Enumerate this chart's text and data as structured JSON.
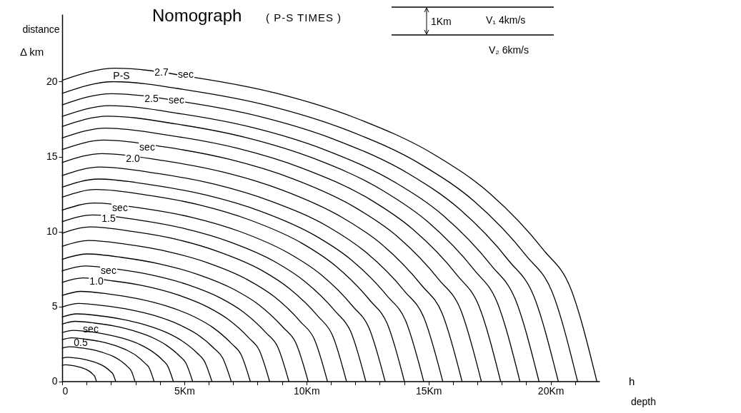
{
  "chart_data": {
    "type": "line",
    "title": "Nomograph",
    "subtitle": "( P-S TIMES )",
    "xlabel": "depth",
    "ylabel": "distance",
    "xlim": [
      0,
      22
    ],
    "ylim": [
      0,
      24.5
    ],
    "xticks": [
      0,
      {
        "value": 1,
        "label": null
      },
      {
        "value": 2,
        "label": null
      },
      {
        "value": 3,
        "label": null
      },
      {
        "value": 4,
        "label": null
      },
      {
        "value": 5,
        "label": "5Km"
      },
      {
        "value": 6,
        "label": null
      },
      {
        "value": 7,
        "label": null
      },
      {
        "value": 8,
        "label": null
      },
      {
        "value": 9,
        "label": null
      },
      {
        "value": 10,
        "label": "10Km"
      },
      {
        "value": 11,
        "label": null
      },
      {
        "value": 12,
        "label": null
      },
      {
        "value": 13,
        "label": null
      },
      {
        "value": 14,
        "label": null
      },
      {
        "value": 15,
        "label": "15Km"
      },
      {
        "value": 16,
        "label": null
      },
      {
        "value": 17,
        "label": null
      },
      {
        "value": 18,
        "label": null
      },
      {
        "value": 19,
        "label": null
      },
      {
        "value": 20,
        "label": "20Km"
      },
      {
        "value": 21,
        "label": null
      }
    ],
    "yticks": [
      0,
      5,
      10,
      15,
      20
    ],
    "series": [
      {
        "color": "#000000",
        "x": [
          0,
          0.14,
          0.35,
          0.56,
          0.77,
          0.98,
          1.12,
          1.26,
          1.33,
          1.4
        ],
        "values": [
          1.07,
          1.1,
          1.07,
          1.01,
          0.92,
          0.79,
          0.66,
          0.46,
          0.33,
          0
        ]
      },
      {
        "color": "#000000",
        "x": [
          0,
          0.22,
          0.55,
          0.88,
          1.2,
          1.53,
          1.75,
          1.97,
          2.08,
          2.19
        ],
        "values": [
          1.54,
          1.6,
          1.55,
          1.47,
          1.34,
          1.15,
          0.96,
          0.67,
          0.48,
          0
        ]
      },
      {
        "color": "#000000",
        "x": [
          0,
          0.3,
          0.75,
          1.19,
          1.64,
          2.09,
          2.38,
          2.68,
          2.83,
          2.98
        ],
        "values": [
          2.21,
          2.3,
          2.23,
          2.12,
          1.93,
          1.66,
          1.38,
          0.97,
          0.69,
          0
        ]
      },
      {
        "color": "#000000",
        "x": [
          0,
          0.38,
          0.94,
          1.5,
          2.07,
          2.63,
          3.01,
          3.38,
          3.57,
          3.76
        ],
        "values": [
          2.78,
          2.9,
          2.81,
          2.67,
          2.44,
          2.09,
          1.74,
          1.22,
          0.87,
          0
        ]
      },
      {
        "color": "#000000",
        "x": [
          0,
          0.46,
          1.14,
          1.82,
          2.5,
          3.19,
          3.64,
          4.1,
          4.32,
          4.55
        ],
        "values": [
          3.25,
          3.4,
          3.3,
          3.13,
          2.86,
          2.45,
          2.04,
          1.43,
          1.02,
          0
        ]
      },
      {
        "color": "#000000",
        "x": [
          0,
          0.53,
          1.34,
          2.14,
          2.94,
          3.74,
          4.27,
          4.81,
          5.07,
          5.34
        ],
        "values": [
          3.82,
          4,
          3.88,
          3.68,
          3.36,
          2.88,
          2.4,
          1.68,
          1.2,
          0
        ]
      },
      {
        "color": "#000000",
        "x": [
          0,
          0.61,
          1.53,
          2.45,
          3.37,
          4.29,
          4.9,
          5.52,
          5.82,
          6.13
        ],
        "values": [
          4.29,
          4.5,
          4.37,
          4.14,
          3.78,
          3.24,
          2.7,
          1.89,
          1.35,
          0
        ]
      },
      {
        "color": "#000000",
        "x": [
          0,
          0.69,
          1.73,
          2.77,
          3.81,
          4.84,
          5.54,
          6.23,
          6.57,
          6.92
        ],
        "values": [
          4.96,
          5.2,
          5.04,
          4.78,
          4.37,
          3.74,
          3.12,
          2.18,
          1.56,
          0
        ]
      },
      {
        "color": "#000000",
        "x": [
          0,
          0.77,
          1.93,
          3.08,
          4.24,
          5.39,
          6.16,
          6.93,
          7.32,
          7.7
        ],
        "values": [
          5.73,
          6,
          5.82,
          5.52,
          5.04,
          4.32,
          3.6,
          2.52,
          1.8,
          0
        ]
      },
      {
        "color": "#000000",
        "x": [
          0,
          0.85,
          2.12,
          3.4,
          4.67,
          5.94,
          6.79,
          7.64,
          8.07,
          8.49
        ],
        "values": [
          6.6,
          6.9,
          6.69,
          6.35,
          5.8,
          4.97,
          4.14,
          2.9,
          2.07,
          0
        ]
      },
      {
        "color": "#000000",
        "x": [
          0,
          0.93,
          2.32,
          3.71,
          5.1,
          6.5,
          7.42,
          8.35,
          8.82,
          9.28
        ],
        "values": [
          7.37,
          7.7,
          7.47,
          7.08,
          6.47,
          5.54,
          4.62,
          3.23,
          2.31,
          0
        ]
      },
      {
        "color": "#000000",
        "x": [
          0,
          1.01,
          2.52,
          4.03,
          5.54,
          7.05,
          8.06,
          9.06,
          9.57,
          10.07
        ],
        "values": [
          8.14,
          8.5,
          8.25,
          7.82,
          7.14,
          6.12,
          5.1,
          3.57,
          2.55,
          0
        ]
      },
      {
        "color": "#000000",
        "x": [
          0,
          1.09,
          2.72,
          4.34,
          5.97,
          7.6,
          8.69,
          9.77,
          10.32,
          10.86
        ],
        "values": [
          9.01,
          9.4,
          9.12,
          8.65,
          7.9,
          6.77,
          5.64,
          3.95,
          2.82,
          0
        ]
      },
      {
        "color": "#000000",
        "x": [
          0,
          1.16,
          2.91,
          4.66,
          6.4,
          8.15,
          9.31,
          10.48,
          11.06,
          11.64
        ],
        "values": [
          9.88,
          10.3,
          9.99,
          9.48,
          8.65,
          7.42,
          6.18,
          4.33,
          3.09,
          0
        ]
      },
      {
        "color": "#000000",
        "x": [
          0,
          1.24,
          3.11,
          4.97,
          6.84,
          8.7,
          9.94,
          11.19,
          11.81,
          12.43
        ],
        "values": [
          10.65,
          11.1,
          10.77,
          10.21,
          9.32,
          7.99,
          6.66,
          4.66,
          3.33,
          0
        ]
      },
      {
        "color": "#000000",
        "x": [
          0,
          1.32,
          3.31,
          5.29,
          7.27,
          9.25,
          10.58,
          11.9,
          12.56,
          13.22
        ],
        "values": [
          11.42,
          11.9,
          11.54,
          10.95,
          10,
          8.57,
          7.14,
          5,
          3.57,
          0
        ]
      },
      {
        "color": "#000000",
        "x": [
          0,
          1.4,
          3.5,
          5.6,
          7.71,
          9.81,
          11.21,
          12.61,
          13.31,
          14.01
        ],
        "values": [
          12.29,
          12.8,
          12.42,
          11.78,
          10.75,
          9.22,
          7.68,
          5.38,
          3.84,
          0
        ]
      },
      {
        "color": "#000000",
        "x": [
          0,
          1.48,
          3.7,
          5.92,
          8.14,
          10.36,
          11.84,
          13.32,
          14.06,
          14.8
        ],
        "values": [
          12.96,
          13.5,
          13.1,
          12.42,
          11.34,
          9.72,
          8.1,
          5.67,
          4.05,
          0
        ]
      },
      {
        "color": "#000000",
        "x": [
          0,
          1.56,
          3.9,
          6.23,
          8.57,
          10.91,
          12.46,
          14.02,
          14.8,
          15.58
        ],
        "values": [
          13.73,
          14.3,
          13.87,
          13.16,
          12.01,
          10.3,
          8.58,
          6.01,
          4.29,
          0
        ]
      },
      {
        "color": "#000000",
        "x": [
          0,
          1.64,
          4.09,
          6.55,
          9,
          11.46,
          13.1,
          14.73,
          15.55,
          16.37
        ],
        "values": [
          14.6,
          15.2,
          14.74,
          13.98,
          12.77,
          10.94,
          9.12,
          6.38,
          4.56,
          0
        ]
      },
      {
        "color": "#000000",
        "x": [
          0,
          1.72,
          4.29,
          6.86,
          9.44,
          12.01,
          13.73,
          15.44,
          16.3,
          17.16
        ],
        "values": [
          15.47,
          16.1,
          15.62,
          14.81,
          13.52,
          11.59,
          9.66,
          6.76,
          4.83,
          0
        ]
      },
      {
        "color": "#000000",
        "x": [
          0,
          1.8,
          4.49,
          7.18,
          9.87,
          12.57,
          14.36,
          16.16,
          17.05,
          17.95
        ],
        "values": [
          16.24,
          16.9,
          16.39,
          15.55,
          14.2,
          12.17,
          10.14,
          7.1,
          5.07,
          0
        ]
      },
      {
        "color": "#000000",
        "x": [
          0,
          1.87,
          4.69,
          7.5,
          10.31,
          13.12,
          14.99,
          16.87,
          17.8,
          18.74
        ],
        "values": [
          17.01,
          17.7,
          17.17,
          16.28,
          14.87,
          12.74,
          10.62,
          7.43,
          5.31,
          0
        ]
      },
      {
        "color": "#000000",
        "x": [
          0,
          1.95,
          4.88,
          7.81,
          10.74,
          13.66,
          15.62,
          17.57,
          18.54,
          19.52
        ],
        "values": [
          17.68,
          18.4,
          17.85,
          16.93,
          15.46,
          13.25,
          11.04,
          7.73,
          5.52,
          0
        ]
      },
      {
        "color": "#000000",
        "x": [
          0,
          2.03,
          5.08,
          8.12,
          11.17,
          14.22,
          16.25,
          18.28,
          19.29,
          20.31
        ],
        "values": [
          18.45,
          19.2,
          18.62,
          17.66,
          16.13,
          13.82,
          11.52,
          8.06,
          5.76,
          0
        ]
      },
      {
        "color": "#000000",
        "x": [
          0,
          2.11,
          5.28,
          8.44,
          11.61,
          14.77,
          16.88,
          18.99,
          20.05,
          21.1
        ],
        "values": [
          19.22,
          20,
          19.4,
          18.4,
          16.8,
          14.4,
          12,
          8.4,
          6,
          0
        ]
      },
      {
        "color": "#000000",
        "x": [
          0,
          2.19,
          5.47,
          8.76,
          12.04,
          15.32,
          17.51,
          19.7,
          20.8,
          21.89
        ],
        "values": [
          20.09,
          20.9,
          20.27,
          19.23,
          17.56,
          15.05,
          12.54,
          8.78,
          6.27,
          0
        ]
      }
    ],
    "annotations": [
      "Δ  km",
      "h",
      "1Km",
      "V₁ 4km/s",
      "V₂ 6km/s",
      "P-S",
      "2.7",
      "sec",
      "2.5",
      "sec",
      "sec",
      "2.0",
      "sec",
      "1.5",
      "sec",
      "1.0",
      "sec",
      "0.5"
    ]
  }
}
